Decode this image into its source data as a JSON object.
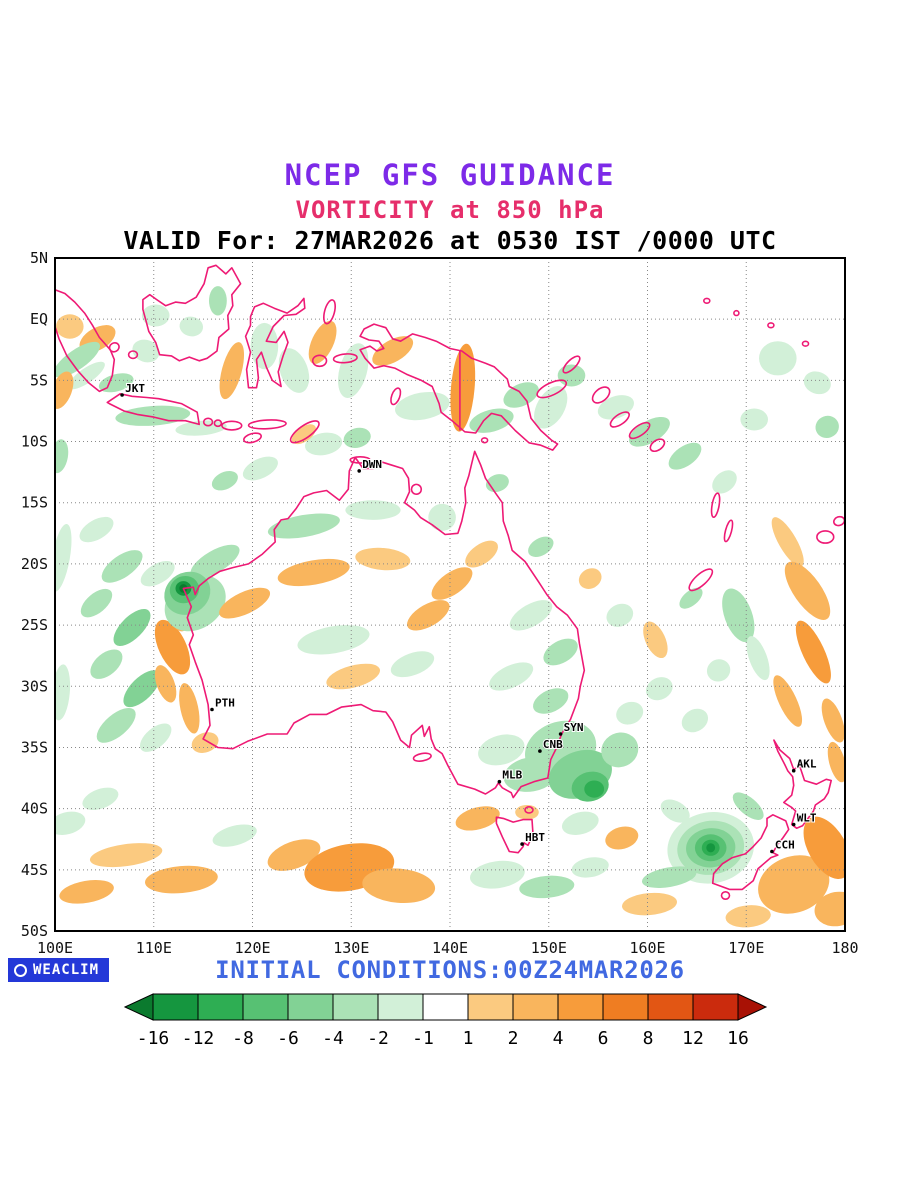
{
  "header": {
    "line1": "NCEP GFS GUIDANCE",
    "line2": "VORTICITY at 850 hPa",
    "line3": "VALID For: 27MAR2026 at 0530 IST /0000 UTC",
    "line1_color": "#7d2ae8",
    "line2_color": "#e62e6b",
    "line3_color": "#000000"
  },
  "footer": {
    "initial_conditions": "INITIAL CONDITIONS:00Z24MAR2026",
    "color": "#4169e1",
    "logo": {
      "text": "WEACLIM",
      "bg": "#2438d8",
      "fg": "#ffffff"
    }
  },
  "map_style": {
    "coast_color": "#ee1a75",
    "grid_color": "#888888",
    "frame_color": "#000000",
    "label_color": "#111111"
  },
  "chart_data": {
    "type": "heatmap",
    "title": "NCEP GFS GUIDANCE",
    "subtitle": "VORTICITY at 850 hPa",
    "valid": "27MAR2026 at 0530 IST /0000 UTC",
    "initial": "00Z24MAR2026",
    "x_axis": {
      "min": 100,
      "max": 180,
      "ticks": [
        {
          "label": "100E",
          "lon": 100
        },
        {
          "label": "110E",
          "lon": 110
        },
        {
          "label": "120E",
          "lon": 120
        },
        {
          "label": "130E",
          "lon": 130
        },
        {
          "label": "140E",
          "lon": 140
        },
        {
          "label": "150E",
          "lon": 150
        },
        {
          "label": "160E",
          "lon": 160
        },
        {
          "label": "170E",
          "lon": 170
        },
        {
          "label": "180",
          "lon": 180
        }
      ]
    },
    "y_axis": {
      "min": -50,
      "max": 5,
      "ticks": [
        {
          "label": "5N",
          "lat": 5
        },
        {
          "label": "EQ",
          "lat": 0
        },
        {
          "label": "5S",
          "lat": -5
        },
        {
          "label": "10S",
          "lat": -10
        },
        {
          "label": "15S",
          "lat": -15
        },
        {
          "label": "20S",
          "lat": -20
        },
        {
          "label": "25S",
          "lat": -25
        },
        {
          "label": "30S",
          "lat": -30
        },
        {
          "label": "35S",
          "lat": -35
        },
        {
          "label": "40S",
          "lat": -40
        },
        {
          "label": "45S",
          "lat": -45
        },
        {
          "label": "50S",
          "lat": -50
        }
      ]
    },
    "colorbar": {
      "labels": [
        "-16",
        "-12",
        "-8",
        "-6",
        "-4",
        "-2",
        "-1",
        "1",
        "2",
        "4",
        "6",
        "8",
        "12",
        "16"
      ],
      "colors": [
        "#0b7a2e",
        "#15963f",
        "#2eae53",
        "#57c173",
        "#82d295",
        "#abe2b6",
        "#d2f0d8",
        "#ffffff",
        "#fbca80",
        "#f9b55d",
        "#f79c3b",
        "#ef7d22",
        "#e25614",
        "#cb2b0d",
        "#a81105"
      ]
    },
    "cities": [
      {
        "code": "JKT",
        "lon": 106.8,
        "lat": -6.2
      },
      {
        "code": "DWN",
        "lon": 130.8,
        "lat": -12.4
      },
      {
        "code": "PTH",
        "lon": 115.9,
        "lat": -31.9
      },
      {
        "code": "SYN",
        "lon": 151.2,
        "lat": -33.9
      },
      {
        "code": "CNB",
        "lon": 149.1,
        "lat": -35.3
      },
      {
        "code": "MLB",
        "lon": 145.0,
        "lat": -37.8
      },
      {
        "code": "HBT",
        "lon": 147.3,
        "lat": -42.9
      },
      {
        "code": "AKL",
        "lon": 174.8,
        "lat": -36.9
      },
      {
        "code": "WLT",
        "lon": 174.8,
        "lat": -41.3
      },
      {
        "code": "CCH",
        "lon": 172.6,
        "lat": -43.5
      }
    ],
    "vorticity_centers": [
      {
        "lon": 113.0,
        "lat": -22.0
      },
      {
        "lon": 166.4,
        "lat": -43.2
      }
    ],
    "features_format": "lon,lat,rx_deg,ry_deg,rotation_deg,color_index",
    "features": [
      [
        101.5,
        -0.6,
        1.4,
        1.0,
        0,
        8
      ],
      [
        104.3,
        -1.6,
        2.0,
        0.9,
        -30,
        9
      ],
      [
        102.2,
        -3.3,
        2.8,
        0.8,
        -35,
        5
      ],
      [
        103.2,
        -4.6,
        2.2,
        0.6,
        -35,
        6
      ],
      [
        106.2,
        -5.2,
        1.8,
        0.7,
        -15,
        5
      ],
      [
        109.9,
        -7.9,
        3.8,
        0.8,
        -4,
        5
      ],
      [
        114.8,
        -8.9,
        2.6,
        0.6,
        -5,
        6
      ],
      [
        109.2,
        -2.6,
        1.4,
        0.9,
        20,
        6
      ],
      [
        100.7,
        -5.8,
        1.0,
        1.6,
        20,
        9
      ],
      [
        110.2,
        0.3,
        1.4,
        0.9,
        0,
        6
      ],
      [
        113.8,
        -0.6,
        1.2,
        0.8,
        10,
        6
      ],
      [
        116.5,
        1.5,
        0.9,
        1.2,
        0,
        5
      ],
      [
        117.9,
        -4.2,
        1.0,
        2.4,
        15,
        9
      ],
      [
        121.2,
        -2.2,
        1.4,
        1.9,
        0,
        6
      ],
      [
        124.2,
        -4.2,
        1.4,
        1.9,
        -20,
        6
      ],
      [
        127.1,
        -1.9,
        1.1,
        1.9,
        25,
        9
      ],
      [
        130.2,
        -4.2,
        1.4,
        2.3,
        15,
        6
      ],
      [
        134.2,
        -2.6,
        2.3,
        0.9,
        -30,
        9
      ],
      [
        137.2,
        -7.1,
        2.8,
        1.1,
        -10,
        6
      ],
      [
        141.3,
        -5.6,
        1.2,
        3.6,
        5,
        10
      ],
      [
        144.2,
        -8.3,
        2.3,
        0.9,
        -15,
        5
      ],
      [
        147.2,
        -6.2,
        1.9,
        0.9,
        -25,
        5
      ],
      [
        150.2,
        -7.2,
        1.4,
        1.9,
        30,
        6
      ],
      [
        152.3,
        -4.6,
        1.4,
        0.9,
        0,
        5
      ],
      [
        156.8,
        -7.2,
        1.9,
        0.9,
        -20,
        6
      ],
      [
        160.2,
        -9.2,
        2.3,
        0.9,
        -30,
        5
      ],
      [
        163.8,
        -11.2,
        1.9,
        0.8,
        -35,
        5
      ],
      [
        167.8,
        -13.3,
        1.4,
        0.8,
        -40,
        6
      ],
      [
        173.2,
        -3.2,
        1.9,
        1.4,
        0,
        6
      ],
      [
        177.2,
        -5.2,
        1.4,
        0.9,
        20,
        6
      ],
      [
        170.8,
        -8.2,
        1.4,
        0.9,
        0,
        6
      ],
      [
        178.2,
        -8.8,
        1.2,
        0.9,
        -20,
        5
      ],
      [
        127.2,
        -10.2,
        1.9,
        0.9,
        -10,
        6
      ],
      [
        130.6,
        -9.7,
        1.4,
        0.8,
        -15,
        5
      ],
      [
        125.2,
        -9.4,
        1.4,
        0.6,
        -35,
        8
      ],
      [
        120.8,
        -12.2,
        1.9,
        0.8,
        -25,
        6
      ],
      [
        117.2,
        -13.2,
        1.4,
        0.7,
        -25,
        5
      ],
      [
        139.2,
        -16.2,
        1.4,
        1.1,
        0,
        6
      ],
      [
        144.8,
        -13.4,
        1.2,
        0.7,
        -20,
        5
      ],
      [
        100.4,
        -11.2,
        0.9,
        1.4,
        10,
        5
      ],
      [
        100.6,
        -19.5,
        0.9,
        2.8,
        10,
        6
      ],
      [
        104.2,
        -17.2,
        1.9,
        0.8,
        -30,
        6
      ],
      [
        106.8,
        -20.2,
        2.4,
        0.9,
        -35,
        5
      ],
      [
        104.2,
        -23.2,
        1.9,
        0.8,
        -40,
        5
      ],
      [
        107.8,
        -25.2,
        2.4,
        0.9,
        -45,
        4
      ],
      [
        105.2,
        -28.2,
        1.9,
        0.9,
        -40,
        5
      ],
      [
        108.8,
        -30.2,
        2.4,
        0.9,
        -45,
        4
      ],
      [
        106.2,
        -33.2,
        2.4,
        0.9,
        -40,
        5
      ],
      [
        110.2,
        -34.2,
        1.9,
        0.8,
        -40,
        6
      ],
      [
        100.6,
        -30.5,
        0.9,
        2.3,
        5,
        6
      ],
      [
        111.9,
        -26.8,
        1.4,
        2.4,
        -25,
        10
      ],
      [
        111.2,
        -29.8,
        0.9,
        1.6,
        -20,
        9
      ],
      [
        113.6,
        -31.8,
        0.9,
        2.1,
        -12,
        9
      ],
      [
        115.2,
        -34.6,
        1.4,
        0.8,
        -20,
        8
      ],
      [
        112.4,
        -24.4,
        0.8,
        1.2,
        -25,
        9
      ],
      [
        110.4,
        -20.8,
        1.9,
        0.8,
        -30,
        6
      ],
      [
        116.2,
        -19.8,
        2.8,
        0.9,
        -30,
        5
      ],
      [
        114.2,
        -23.2,
        3.3,
        2.1,
        -35,
        5
      ],
      [
        113.4,
        -22.4,
        2.4,
        1.7,
        -30,
        4
      ],
      [
        113.1,
        -22.1,
        1.5,
        1.1,
        -20,
        3
      ],
      [
        113.0,
        -22.0,
        0.8,
        0.6,
        0,
        1
      ],
      [
        113.0,
        -22.0,
        0.42,
        0.35,
        0,
        0
      ],
      [
        119.2,
        -23.2,
        2.8,
        0.9,
        -25,
        9
      ],
      [
        126.2,
        -20.7,
        3.7,
        1.0,
        -10,
        9
      ],
      [
        133.2,
        -19.6,
        2.8,
        0.9,
        5,
        8
      ],
      [
        125.2,
        -16.9,
        3.7,
        0.9,
        -10,
        5
      ],
      [
        132.2,
        -15.6,
        2.8,
        0.8,
        0,
        6
      ],
      [
        128.2,
        -26.2,
        3.7,
        1.1,
        -10,
        6
      ],
      [
        130.2,
        -29.2,
        2.8,
        0.9,
        -15,
        8
      ],
      [
        136.2,
        -28.2,
        2.3,
        0.9,
        -20,
        6
      ],
      [
        137.8,
        -24.2,
        2.4,
        0.9,
        -30,
        9
      ],
      [
        140.2,
        -21.6,
        2.4,
        0.9,
        -35,
        9
      ],
      [
        143.2,
        -19.2,
        1.9,
        0.8,
        -35,
        8
      ],
      [
        149.2,
        -18.6,
        1.4,
        0.7,
        -30,
        5
      ],
      [
        154.2,
        -21.2,
        1.2,
        0.8,
        -30,
        8
      ],
      [
        157.2,
        -24.2,
        1.4,
        0.9,
        -25,
        6
      ],
      [
        160.8,
        -26.2,
        1.0,
        1.6,
        -25,
        8
      ],
      [
        167.2,
        -28.7,
        1.2,
        0.9,
        -25,
        6
      ],
      [
        148.2,
        -24.2,
        2.4,
        0.9,
        -30,
        6
      ],
      [
        151.2,
        -27.2,
        1.9,
        0.9,
        -30,
        5
      ],
      [
        146.2,
        -29.2,
        2.4,
        0.9,
        -25,
        6
      ],
      [
        150.2,
        -31.2,
        1.9,
        0.9,
        -25,
        5
      ],
      [
        145.2,
        -35.2,
        2.4,
        1.2,
        -15,
        6
      ],
      [
        148.2,
        -37.2,
        2.8,
        1.4,
        -10,
        5
      ],
      [
        151.2,
        -35.2,
        3.7,
        2.3,
        -20,
        5
      ],
      [
        153.2,
        -37.2,
        3.3,
        1.9,
        -20,
        4
      ],
      [
        154.2,
        -38.2,
        1.9,
        1.2,
        -15,
        3
      ],
      [
        154.6,
        -38.4,
        1.0,
        0.7,
        0,
        2
      ],
      [
        157.2,
        -35.2,
        1.9,
        1.4,
        -25,
        5
      ],
      [
        158.2,
        -32.2,
        1.4,
        0.9,
        -20,
        6
      ],
      [
        161.2,
        -30.2,
        1.4,
        0.9,
        -25,
        6
      ],
      [
        164.8,
        -32.8,
        1.4,
        0.9,
        -30,
        6
      ],
      [
        174.2,
        -18.2,
        0.9,
        2.3,
        -30,
        8
      ],
      [
        176.2,
        -22.2,
        1.4,
        2.8,
        -35,
        9
      ],
      [
        169.2,
        -24.2,
        1.4,
        2.3,
        -20,
        5
      ],
      [
        171.2,
        -27.7,
        0.9,
        1.9,
        -20,
        6
      ],
      [
        176.8,
        -27.2,
        1.1,
        2.8,
        -25,
        10
      ],
      [
        174.2,
        -31.2,
        0.9,
        2.3,
        -25,
        9
      ],
      [
        178.8,
        -32.8,
        0.9,
        1.9,
        -20,
        9
      ],
      [
        179.2,
        -36.2,
        0.8,
        1.7,
        -15,
        9
      ],
      [
        164.4,
        -22.8,
        1.4,
        0.6,
        -40,
        5
      ],
      [
        142.8,
        -40.8,
        2.3,
        0.9,
        -15,
        9
      ],
      [
        147.8,
        -40.3,
        1.2,
        0.6,
        0,
        8
      ],
      [
        153.2,
        -41.2,
        1.9,
        0.9,
        -15,
        6
      ],
      [
        157.4,
        -42.4,
        1.7,
        0.9,
        -15,
        9
      ],
      [
        124.2,
        -43.8,
        2.8,
        1.1,
        -20,
        9
      ],
      [
        129.8,
        -44.8,
        4.6,
        1.9,
        -10,
        10
      ],
      [
        134.8,
        -46.3,
        3.7,
        1.4,
        5,
        9
      ],
      [
        107.2,
        -43.8,
        3.7,
        0.9,
        -8,
        8
      ],
      [
        112.8,
        -45.8,
        3.7,
        1.1,
        -5,
        9
      ],
      [
        103.2,
        -46.8,
        2.8,
        0.9,
        -10,
        9
      ],
      [
        101.2,
        -41.2,
        1.9,
        0.9,
        -15,
        6
      ],
      [
        104.6,
        -39.2,
        1.9,
        0.8,
        -20,
        6
      ],
      [
        118.2,
        -42.2,
        2.3,
        0.8,
        -15,
        6
      ],
      [
        144.8,
        -45.4,
        2.8,
        1.1,
        -8,
        6
      ],
      [
        149.8,
        -46.4,
        2.8,
        0.9,
        -5,
        5
      ],
      [
        154.2,
        -44.8,
        1.9,
        0.8,
        -10,
        6
      ],
      [
        162.8,
        -40.2,
        1.6,
        0.8,
        30,
        6
      ],
      [
        170.2,
        -39.8,
        1.9,
        0.7,
        40,
        5
      ],
      [
        166.4,
        -43.2,
        4.4,
        2.9,
        -10,
        6
      ],
      [
        166.4,
        -43.2,
        3.4,
        2.2,
        -10,
        5
      ],
      [
        166.4,
        -43.2,
        2.5,
        1.6,
        -5,
        4
      ],
      [
        166.4,
        -43.2,
        1.6,
        1.1,
        0,
        3
      ],
      [
        166.4,
        -43.2,
        0.9,
        0.65,
        0,
        2
      ],
      [
        166.4,
        -43.2,
        0.45,
        0.38,
        0,
        1
      ],
      [
        162.2,
        -45.6,
        2.8,
        0.8,
        -10,
        5
      ],
      [
        160.2,
        -47.8,
        2.8,
        0.9,
        -5,
        8
      ],
      [
        174.8,
        -46.2,
        3.7,
        2.3,
        -20,
        9
      ],
      [
        178.2,
        -43.2,
        1.9,
        2.8,
        -30,
        10
      ],
      [
        179.2,
        -48.2,
        2.3,
        1.4,
        -10,
        9
      ],
      [
        170.2,
        -48.8,
        2.3,
        0.9,
        -5,
        8
      ]
    ]
  }
}
